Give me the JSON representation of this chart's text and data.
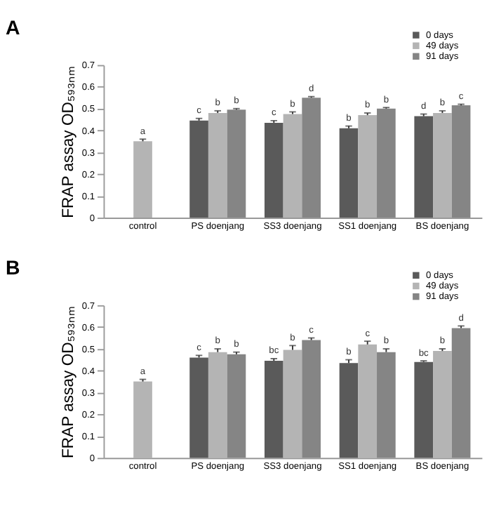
{
  "chart_data": [
    {
      "type": "bar",
      "title": "A",
      "ylabel": "FRAP assay OD₅₉₃ₙₘ",
      "categories": [
        "control",
        "PS doenjang",
        "SS3 doenjang",
        "SS1 doenjang",
        "BS doenjang"
      ],
      "ylim": [
        0,
        0.7
      ],
      "yticks": [
        0,
        0.1,
        0.2,
        0.3,
        0.4,
        0.5,
        0.6,
        0.7
      ],
      "grid": false,
      "legend": "top right",
      "series": [
        {
          "name": "0 days",
          "color": "#5a5a5a",
          "values": [
            null,
            0.445,
            0.435,
            0.41,
            0.465
          ],
          "errors": [
            null,
            [
              0.445,
              0.455
            ],
            [
              0.435,
              0.445
            ],
            [
              0.41,
              0.42
            ],
            [
              0.465,
              0.475
            ]
          ],
          "value_labels": [
            null,
            "c",
            "c",
            "b",
            "d"
          ]
        },
        {
          "name": "49 days",
          "color": "#b4b4b4",
          "values": [
            0.35,
            0.48,
            0.475,
            0.47,
            0.48
          ],
          "errors": [
            [
              0.35,
              0.36
            ],
            [
              0.48,
              0.49
            ],
            [
              0.475,
              0.485
            ],
            [
              0.47,
              0.48
            ],
            [
              0.48,
              0.49
            ]
          ],
          "value_labels": [
            "a",
            "b",
            "b",
            "b",
            "b"
          ]
        },
        {
          "name": "91 days",
          "color": "#858585",
          "values": [
            null,
            0.495,
            0.55,
            0.5,
            0.515
          ],
          "errors": [
            null,
            [
              0.495,
              0.5
            ],
            [
              0.55,
              0.555
            ],
            [
              0.5,
              0.505
            ],
            [
              0.515,
              0.52
            ]
          ],
          "value_labels": [
            null,
            "b",
            "d",
            "b",
            "c"
          ]
        }
      ]
    },
    {
      "type": "bar",
      "title": "B",
      "ylabel": "FRAP assay OD₅₉₃ₙₘ",
      "categories": [
        "control",
        "PS doenjang",
        "SS3 doenjang",
        "SS1 doenjang",
        "BS doenjang"
      ],
      "ylim": [
        0,
        0.7
      ],
      "yticks": [
        0,
        0.1,
        0.2,
        0.3,
        0.4,
        0.5,
        0.6,
        0.7
      ],
      "grid": false,
      "legend": "top right",
      "series": [
        {
          "name": "0 days",
          "color": "#5a5a5a",
          "values": [
            null,
            0.46,
            0.445,
            0.435,
            0.44
          ],
          "errors": [
            null,
            [
              0.46,
              0.47
            ],
            [
              0.445,
              0.455
            ],
            [
              0.435,
              0.45
            ],
            [
              0.44,
              0.445
            ]
          ],
          "value_labels": [
            null,
            "c",
            "bc",
            "b",
            "bc"
          ]
        },
        {
          "name": "49 days",
          "color": "#b4b4b4",
          "values": [
            0.35,
            0.485,
            0.495,
            0.52,
            0.49
          ],
          "errors": [
            [
              0.35,
              0.36
            ],
            [
              0.485,
              0.5
            ],
            [
              0.495,
              0.515
            ],
            [
              0.52,
              0.535
            ],
            [
              0.49,
              0.5
            ]
          ],
          "value_labels": [
            "a",
            "b",
            "b",
            "c",
            "b"
          ]
        },
        {
          "name": "91 days",
          "color": "#858585",
          "values": [
            null,
            0.475,
            0.54,
            0.485,
            0.595
          ],
          "errors": [
            null,
            [
              0.475,
              0.485
            ],
            [
              0.54,
              0.55
            ],
            [
              0.485,
              0.5
            ],
            [
              0.595,
              0.605
            ]
          ],
          "value_labels": [
            null,
            "b",
            "c",
            "b",
            "d"
          ]
        }
      ]
    }
  ]
}
